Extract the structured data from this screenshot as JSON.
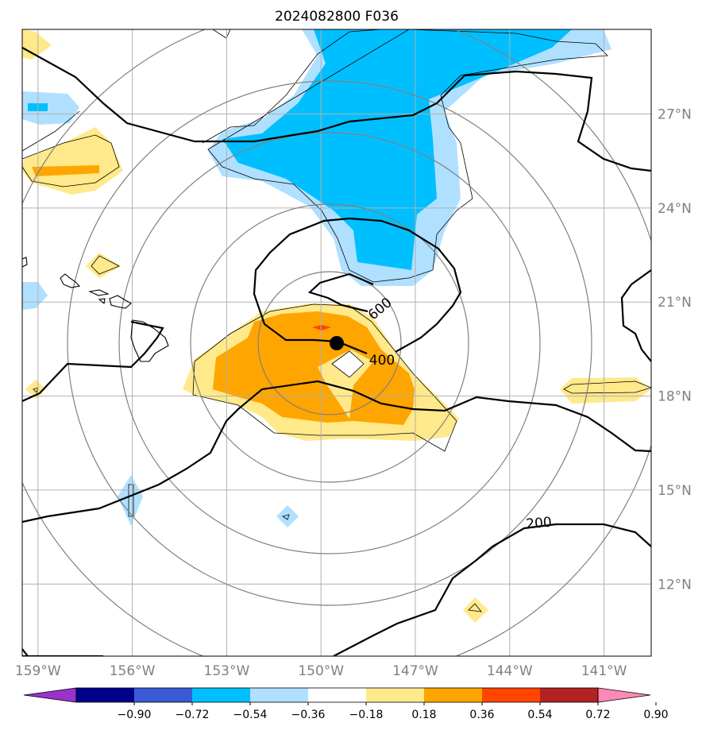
{
  "chart_data": {
    "type": "contour-map",
    "title": "2024082800 F036",
    "x_ticks": [
      "159°W",
      "156°W",
      "153°W",
      "150°W",
      "147°W",
      "144°W",
      "141°W"
    ],
    "x_tick_values": [
      -159,
      -156,
      -153,
      -150,
      -147,
      -144,
      -141
    ],
    "y_ticks": [
      "27°N",
      "24°N",
      "21°N",
      "18°N",
      "15°N",
      "12°N"
    ],
    "y_tick_values": [
      27,
      24,
      21,
      18,
      15,
      12
    ],
    "xlim": [
      -159.5,
      -139.5
    ],
    "ylim": [
      9.7,
      29.7
    ],
    "center": {
      "lon": -150.5,
      "lat": 19.5,
      "marker": "black-dot"
    },
    "contour_labels": [
      {
        "text": "600",
        "lon": -148.1,
        "lat": 20.1
      },
      {
        "text": "400",
        "lon": -147.9,
        "lat": 18.6
      },
      {
        "text": "200",
        "lon": -143.0,
        "lat": 13.0
      }
    ],
    "range_rings_deg": [
      2,
      4,
      6,
      8,
      10
    ],
    "colorbar": {
      "levels": [
        "−0.90",
        "−0.72",
        "−0.54",
        "−0.36",
        "−0.18",
        "0.18",
        "0.36",
        "0.54",
        "0.72",
        "0.90"
      ],
      "colors": [
        "#9933cc",
        "#00008b",
        "#3a5bd6",
        "#00bfff",
        "#b0e0ff",
        "#ffffff",
        "#ffe98a",
        "#ffa500",
        "#ff4500",
        "#b22222",
        "#ff88b4"
      ]
    },
    "fill_colors": {
      "light_blue": "#b0e0ff",
      "deep_sky_blue": "#00bfff",
      "yellow": "#ffe98a",
      "orange": "#ffa500",
      "red": "#ff4500"
    }
  }
}
